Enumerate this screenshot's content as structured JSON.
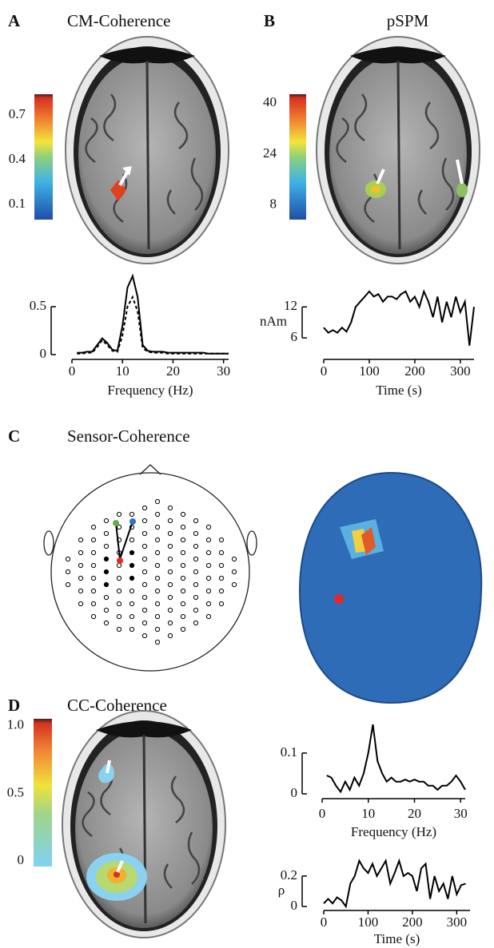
{
  "panels": [
    {
      "letter": "A",
      "title": "CM-Coherence"
    },
    {
      "letter": "B",
      "title": "pSPM"
    },
    {
      "letter": "C",
      "title": "Sensor-Coherence"
    },
    {
      "letter": "D",
      "title": "CC-Coherence"
    }
  ],
  "chart_data": [
    {
      "type": "line",
      "xlabel": "Frequency (Hz)",
      "x": [
        1,
        2,
        3,
        4,
        5,
        6,
        7,
        8,
        9,
        10,
        11,
        12,
        13,
        14,
        15,
        16,
        17,
        18,
        19,
        20,
        21,
        22,
        23,
        24,
        25,
        26,
        27,
        28,
        29,
        30,
        31
      ],
      "series": [
        {
          "color": "#000000",
          "dash": false,
          "values": [
            0.02,
            0.02,
            0.03,
            0.03,
            0.1,
            0.17,
            0.12,
            0.05,
            0.04,
            0.3,
            0.7,
            0.82,
            0.6,
            0.1,
            0.04,
            0.03,
            0.03,
            0.03,
            0.02,
            0.02,
            0.02,
            0.02,
            0.02,
            0.02,
            0.02,
            0.02,
            0.01,
            0.01,
            0.01,
            0.01,
            0.01
          ]
        },
        {
          "color": "#000000",
          "dash": true,
          "values": [
            0.01,
            0.01,
            0.02,
            0.02,
            0.08,
            0.15,
            0.1,
            0.04,
            0.03,
            0.2,
            0.5,
            0.6,
            0.45,
            0.07,
            0.03,
            0.02,
            0.02,
            0.02,
            0.01,
            0.01,
            0.01,
            0.01,
            0.01,
            0.01,
            0.01,
            0.01,
            0.01,
            0.01,
            0.01,
            0.01,
            0.01
          ]
        }
      ],
      "xlim": [
        0,
        31
      ],
      "ylim": [
        0,
        0.85
      ],
      "xticks": [
        0,
        10,
        20,
        30
      ],
      "yticks": [
        0,
        0.5
      ]
    },
    {
      "type": "line",
      "xlabel": "Time (s)",
      "ylabel": "nAm",
      "x": [
        0,
        10,
        20,
        30,
        40,
        50,
        60,
        70,
        80,
        90,
        100,
        110,
        120,
        130,
        140,
        150,
        160,
        170,
        180,
        190,
        200,
        210,
        220,
        230,
        240,
        250,
        260,
        270,
        280,
        290,
        300,
        310,
        320,
        330
      ],
      "series": [
        {
          "color": "#000000",
          "dash": false,
          "values": [
            8,
            7,
            7.5,
            7,
            8,
            7.2,
            9,
            12,
            13,
            14,
            15,
            14,
            14.5,
            13,
            14,
            14,
            13.5,
            14.5,
            15,
            13,
            14,
            12,
            15,
            13,
            10,
            14,
            9,
            13,
            10,
            14,
            11,
            13,
            4.5,
            12
          ]
        }
      ],
      "xlim": [
        0,
        330
      ],
      "ylim": [
        4,
        17
      ],
      "xticks": [
        0,
        100,
        200,
        300
      ],
      "yticks": [
        6,
        12
      ]
    },
    {
      "type": "line",
      "xlabel": "Frequency (Hz)",
      "x": [
        1,
        2,
        3,
        4,
        5,
        6,
        7,
        8,
        9,
        10,
        11,
        12,
        13,
        14,
        15,
        16,
        17,
        18,
        19,
        20,
        21,
        22,
        23,
        24,
        25,
        26,
        27,
        28,
        29,
        30,
        31
      ],
      "series": [
        {
          "color": "#000000",
          "dash": false,
          "values": [
            0.045,
            0.04,
            0.02,
            0.005,
            0.03,
            0.01,
            0.04,
            0.02,
            0.05,
            0.1,
            0.17,
            0.08,
            0.05,
            0.03,
            0.04,
            0.03,
            0.03,
            0.035,
            0.03,
            0.035,
            0.03,
            0.03,
            0.02,
            0.02,
            0.01,
            0.02,
            0.02,
            0.03,
            0.045,
            0.03,
            0.01
          ]
        }
      ],
      "xlim": [
        0,
        31
      ],
      "ylim": [
        0,
        0.18
      ],
      "xticks": [
        0,
        10,
        20,
        30
      ],
      "yticks": [
        0,
        0.1
      ]
    },
    {
      "type": "line",
      "xlabel": "Time (s)",
      "ylabel": "ρ",
      "x": [
        0,
        10,
        20,
        30,
        40,
        50,
        60,
        70,
        80,
        90,
        100,
        110,
        120,
        130,
        140,
        150,
        160,
        170,
        180,
        190,
        200,
        210,
        220,
        230,
        240,
        250,
        260,
        270,
        280,
        290,
        300,
        310,
        320
      ],
      "series": [
        {
          "color": "#000000",
          "dash": false,
          "values": [
            0.02,
            0.05,
            0.02,
            0.06,
            0.04,
            0.0,
            0.15,
            0.2,
            0.3,
            0.25,
            0.22,
            0.28,
            0.2,
            0.25,
            0.3,
            0.15,
            0.22,
            0.3,
            0.2,
            0.22,
            0.2,
            0.1,
            0.25,
            0.28,
            0.05,
            0.2,
            0.1,
            0.15,
            0.05,
            0.2,
            0.08,
            0.14,
            0.15
          ]
        }
      ],
      "xlim": [
        0,
        330
      ],
      "ylim": [
        0,
        0.32
      ],
      "xticks": [
        0,
        100,
        200,
        300
      ],
      "yticks": [
        0,
        0.2
      ]
    },
    {
      "type": "colorbar",
      "colormap": "jet",
      "ylim": [
        0,
        0.84
      ],
      "yticks": [
        0.1,
        0.4,
        0.7
      ]
    },
    {
      "type": "colorbar",
      "colormap": "jet",
      "ylim": [
        3.4,
        42.8
      ],
      "yticks": [
        8,
        24,
        40
      ]
    },
    {
      "type": "colorbar",
      "colormap": "light",
      "ylim": [
        -0.04,
        1.05
      ],
      "yticks": [
        0,
        0.5,
        {
          "value": 1,
          "label": "1.0"
        }
      ]
    }
  ]
}
